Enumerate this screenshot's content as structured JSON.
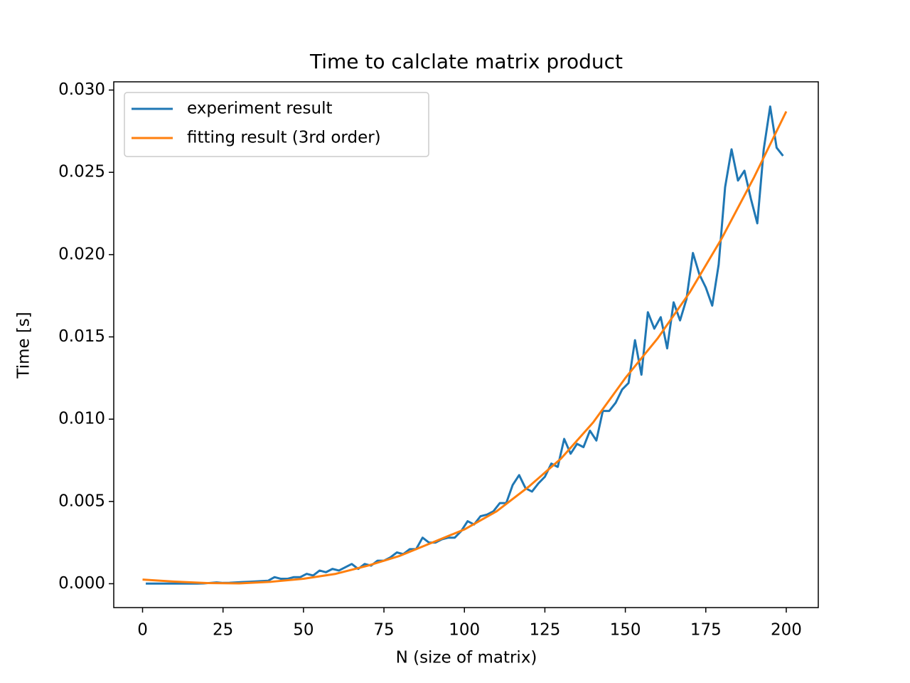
{
  "chart_data": {
    "type": "line",
    "title": "Time to calclate matrix product",
    "xlabel": "N (size of matrix)",
    "ylabel": "Time [s]",
    "xlim": [
      -8.95,
      209.95
    ],
    "ylim": [
      -0.00145,
      0.0305
    ],
    "xticks": [
      0,
      25,
      50,
      75,
      100,
      125,
      150,
      175,
      200
    ],
    "yticks": [
      {
        "value": 0,
        "label": "0.000"
      },
      {
        "value": 0.005,
        "label": "0.005"
      },
      {
        "value": 0.01,
        "label": "0.010"
      },
      {
        "value": 0.015,
        "label": "0.015"
      },
      {
        "value": 0.02,
        "label": "0.020"
      },
      {
        "value": 0.025,
        "label": "0.025"
      },
      {
        "value": 0.03,
        "label": "0.030"
      }
    ],
    "grid": false,
    "legend": "upper left",
    "series": [
      {
        "name": "experiment result",
        "color": "#1f77b4",
        "x": [
          1,
          3,
          5,
          7,
          9,
          11,
          13,
          15,
          17,
          19,
          21,
          23,
          25,
          27,
          29,
          31,
          33,
          35,
          37,
          39,
          41,
          43,
          45,
          47,
          49,
          51,
          53,
          55,
          57,
          59,
          61,
          63,
          65,
          67,
          69,
          71,
          73,
          75,
          77,
          79,
          81,
          83,
          85,
          87,
          89,
          91,
          93,
          95,
          97,
          99,
          101,
          103,
          105,
          107,
          109,
          111,
          113,
          115,
          117,
          119,
          121,
          123,
          125,
          127,
          129,
          131,
          133,
          135,
          137,
          139,
          141,
          143,
          145,
          147,
          149,
          151,
          153,
          155,
          157,
          159,
          161,
          163,
          165,
          167,
          169,
          171,
          173,
          175,
          177,
          179,
          181,
          183,
          185,
          187,
          189,
          191,
          193,
          195,
          197,
          199
        ],
        "values": [
          1e-05,
          1e-05,
          1e-05,
          1e-05,
          1e-05,
          1e-05,
          1e-05,
          1e-05,
          1e-05,
          2e-05,
          5e-05,
          8e-05,
          5e-05,
          6e-05,
          8e-05,
          0.0001,
          0.00012,
          0.00014,
          0.00016,
          0.00018,
          0.0004,
          0.0003,
          0.0003,
          0.0004,
          0.0004,
          0.0006,
          0.0005,
          0.0008,
          0.0007,
          0.0009,
          0.0008,
          0.001,
          0.0012,
          0.0009,
          0.0012,
          0.0011,
          0.0014,
          0.0014,
          0.0016,
          0.0019,
          0.0018,
          0.0021,
          0.0021,
          0.0028,
          0.0025,
          0.0025,
          0.0027,
          0.0028,
          0.0028,
          0.0032,
          0.0038,
          0.0036,
          0.0041,
          0.0042,
          0.0044,
          0.0049,
          0.0049,
          0.006,
          0.0066,
          0.0058,
          0.0056,
          0.0061,
          0.0065,
          0.0073,
          0.0071,
          0.0088,
          0.0079,
          0.0085,
          0.0083,
          0.0093,
          0.0087,
          0.0105,
          0.0105,
          0.011,
          0.0118,
          0.0122,
          0.0148,
          0.0127,
          0.0165,
          0.0155,
          0.0162,
          0.0143,
          0.0171,
          0.016,
          0.0173,
          0.0201,
          0.0188,
          0.018,
          0.0169,
          0.0194,
          0.0241,
          0.0264,
          0.0245,
          0.0251,
          0.0234,
          0.0219,
          0.0264,
          0.029,
          0.0265,
          0.026
        ]
      },
      {
        "name": "fitting result (3rd order)",
        "color": "#ff7f0e",
        "x": [
          0,
          10,
          20,
          30,
          40,
          50,
          60,
          70,
          80,
          90,
          100,
          110,
          120,
          130,
          140,
          150,
          160,
          170,
          180,
          190,
          200
        ],
        "values": [
          0.00025,
          0.00013,
          4e-05,
          2e-05,
          0.00012,
          0.0003,
          0.0006,
          0.0011,
          0.0017,
          0.0025,
          0.0033,
          0.0044,
          0.0059,
          0.0076,
          0.0098,
          0.0125,
          0.0149,
          0.0177,
          0.021,
          0.0247,
          0.0287
        ]
      }
    ]
  }
}
